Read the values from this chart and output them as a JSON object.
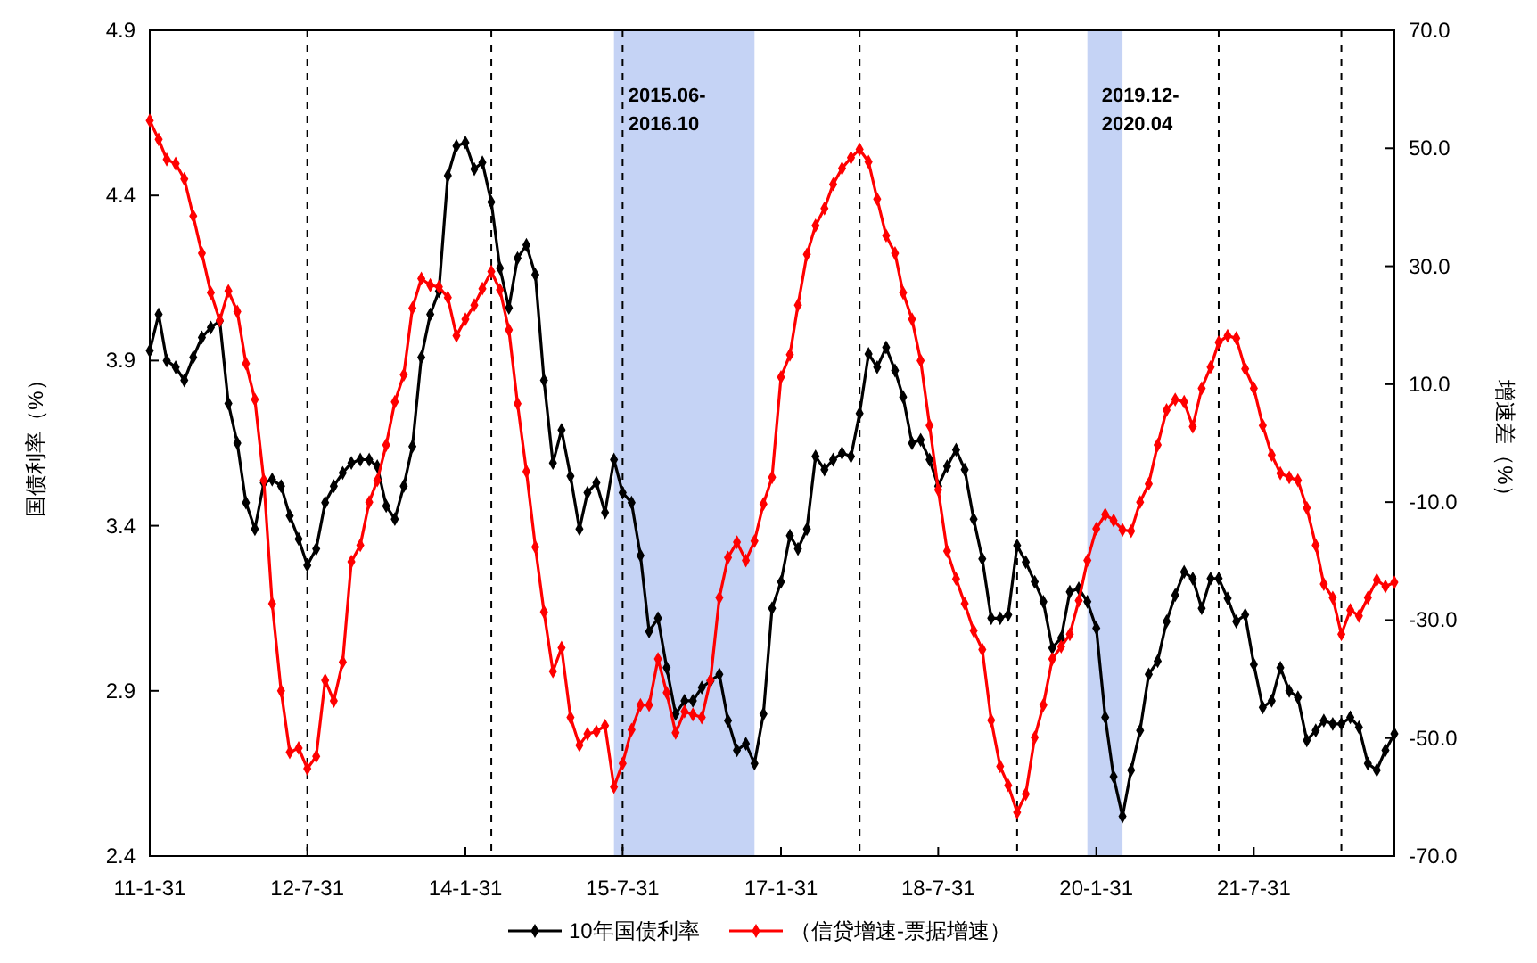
{
  "chart_data": {
    "type": "line",
    "ylabel": "国债利率（%）",
    "y2label": "增速差（%）",
    "x": [
      "2011-01",
      "2011-02",
      "2011-03",
      "2011-04",
      "2011-05",
      "2011-06",
      "2011-07",
      "2011-08",
      "2011-09",
      "2011-10",
      "2011-11",
      "2011-12",
      "2012-01",
      "2012-02",
      "2012-03",
      "2012-04",
      "2012-05",
      "2012-06",
      "2012-07",
      "2012-08",
      "2012-09",
      "2012-10",
      "2012-11",
      "2012-12",
      "2013-01",
      "2013-02",
      "2013-03",
      "2013-04",
      "2013-05",
      "2013-06",
      "2013-07",
      "2013-08",
      "2013-09",
      "2013-10",
      "2013-11",
      "2013-12",
      "2014-01",
      "2014-02",
      "2014-03",
      "2014-04",
      "2014-05",
      "2014-06",
      "2014-07",
      "2014-08",
      "2014-09",
      "2014-10",
      "2014-11",
      "2014-12",
      "2015-01",
      "2015-02",
      "2015-03",
      "2015-04",
      "2015-05",
      "2015-06",
      "2015-07",
      "2015-08",
      "2015-09",
      "2015-10",
      "2015-11",
      "2015-12",
      "2016-01",
      "2016-02",
      "2016-03",
      "2016-04",
      "2016-05",
      "2016-06",
      "2016-07",
      "2016-08",
      "2016-09",
      "2016-10",
      "2016-11",
      "2016-12",
      "2017-01",
      "2017-02",
      "2017-03",
      "2017-04",
      "2017-05",
      "2017-06",
      "2017-07",
      "2017-08",
      "2017-09",
      "2017-10",
      "2017-11",
      "2017-12",
      "2018-01",
      "2018-02",
      "2018-03",
      "2018-04",
      "2018-05",
      "2018-06",
      "2018-07",
      "2018-08",
      "2018-09",
      "2018-10",
      "2018-11",
      "2018-12",
      "2019-01",
      "2019-02",
      "2019-03",
      "2019-04",
      "2019-05",
      "2019-06",
      "2019-07",
      "2019-08",
      "2019-09",
      "2019-10",
      "2019-11",
      "2019-12",
      "2020-01",
      "2020-02",
      "2020-03",
      "2020-04",
      "2020-05",
      "2020-06",
      "2020-07",
      "2020-08",
      "2020-09",
      "2020-10",
      "2020-11",
      "2020-12",
      "2021-01",
      "2021-02",
      "2021-03",
      "2021-04",
      "2021-05",
      "2021-06",
      "2021-07",
      "2021-08",
      "2021-09",
      "2021-10",
      "2021-11",
      "2021-12",
      "2022-01",
      "2022-02",
      "2022-03",
      "2022-04",
      "2022-05",
      "2022-06",
      "2022-07",
      "2022-08",
      "2022-09",
      "2022-10",
      "2022-11"
    ],
    "series": [
      {
        "name": "10年国债利率",
        "color": "#000000",
        "values": [
          3.93,
          4.04,
          3.9,
          3.88,
          3.84,
          3.91,
          3.97,
          4.0,
          4.02,
          3.77,
          3.65,
          3.47,
          3.39,
          3.53,
          3.54,
          3.52,
          3.43,
          3.36,
          3.28,
          3.33,
          3.47,
          3.52,
          3.56,
          3.59,
          3.6,
          3.6,
          3.58,
          3.46,
          3.42,
          3.52,
          3.64,
          3.91,
          4.04,
          4.11,
          4.46,
          4.55,
          4.56,
          4.48,
          4.5,
          4.38,
          4.18,
          4.06,
          4.21,
          4.25,
          4.16,
          3.84,
          3.59,
          3.69,
          3.55,
          3.39,
          3.5,
          3.53,
          3.44,
          3.6,
          3.5,
          3.47,
          3.31,
          3.08,
          3.12,
          2.97,
          2.83,
          2.87,
          2.87,
          2.91,
          2.93,
          2.95,
          2.81,
          2.72,
          2.74,
          2.68,
          2.83,
          3.15,
          3.23,
          3.37,
          3.33,
          3.39,
          3.61,
          3.57,
          3.6,
          3.62,
          3.61,
          3.74,
          3.92,
          3.88,
          3.94,
          3.87,
          3.79,
          3.65,
          3.66,
          3.6,
          3.52,
          3.58,
          3.63,
          3.57,
          3.42,
          3.3,
          3.12,
          3.12,
          3.13,
          3.34,
          3.29,
          3.23,
          3.17,
          3.03,
          3.06,
          3.2,
          3.21,
          3.17,
          3.09,
          2.82,
          2.64,
          2.52,
          2.66,
          2.78,
          2.95,
          2.99,
          3.11,
          3.19,
          3.26,
          3.24,
          3.15,
          3.24,
          3.24,
          3.18,
          3.11,
          3.13,
          2.98,
          2.85,
          2.87,
          2.97,
          2.9,
          2.88,
          2.75,
          2.78,
          2.81,
          2.8,
          2.8,
          2.82,
          2.79,
          2.68,
          2.66,
          2.72,
          2.77
        ]
      },
      {
        "name": "（信贷增速-票据增速）",
        "color": "#ff0000",
        "axis": "y2",
        "values": [
          54.7,
          51.5,
          48.1,
          47.4,
          44.8,
          38.5,
          32.2,
          25.5,
          20.8,
          25.8,
          22.3,
          13.5,
          7.4,
          -6.3,
          -27.2,
          -42.0,
          -52.4,
          -51.7,
          -55.2,
          -53.1,
          -40.2,
          -43.7,
          -37.1,
          -20.1,
          -17.3,
          -10.0,
          -6.3,
          -0.3,
          7.0,
          11.6,
          22.9,
          27.9,
          26.8,
          26.5,
          24.7,
          18.2,
          21.0,
          23.4,
          26.2,
          29.1,
          26.0,
          19.2,
          6.7,
          -4.8,
          -17.6,
          -28.6,
          -38.7,
          -34.7,
          -46.5,
          -51.2,
          -49.3,
          -48.9,
          -47.9,
          -58.3,
          -54.3,
          -48.6,
          -44.4,
          -44.4,
          -36.6,
          -42.3,
          -49.1,
          -45.5,
          -46.0,
          -46.5,
          -40.2,
          -26.2,
          -19.4,
          -16.8,
          -19.9,
          -16.6,
          -10.3,
          -5.8,
          11.2,
          15.0,
          23.4,
          32.0,
          36.9,
          39.8,
          43.9,
          46.6,
          48.4,
          49.8,
          47.7,
          41.4,
          35.2,
          32.2,
          25.5,
          21.0,
          14.0,
          3.0,
          -7.9,
          -18.3,
          -23.0,
          -27.2,
          -31.8,
          -35.0,
          -47.0,
          -54.8,
          -58.0,
          -62.6,
          -59.5,
          -49.9,
          -44.4,
          -36.6,
          -34.5,
          -32.4,
          -26.7,
          -19.9,
          -14.5,
          -12.1,
          -13.1,
          -14.7,
          -14.9,
          -10.0,
          -6.9,
          -0.3,
          5.6,
          7.4,
          7.0,
          2.8,
          9.3,
          12.9,
          17.1,
          18.2,
          17.8,
          12.6,
          9.3,
          3.0,
          -2.0,
          -5.1,
          -5.8,
          -6.3,
          -11.0,
          -17.3,
          -23.9,
          -26.2,
          -32.4,
          -28.3,
          -29.3,
          -26.2,
          -23.2,
          -24.3,
          -23.6
        ]
      }
    ],
    "xlim": [
      "2011-01",
      "2022-11"
    ],
    "xticks": [
      {
        "value": "2011-01",
        "label": "11-1-31"
      },
      {
        "value": "2012-07",
        "label": "12-7-31"
      },
      {
        "value": "2014-01",
        "label": "14-1-31"
      },
      {
        "value": "2015-07",
        "label": "15-7-31"
      },
      {
        "value": "2017-01",
        "label": "17-1-31"
      },
      {
        "value": "2018-07",
        "label": "18-7-31"
      },
      {
        "value": "2020-01",
        "label": "20-1-31"
      },
      {
        "value": "2021-07",
        "label": "21-7-31"
      }
    ],
    "ylim": [
      2.4,
      4.9
    ],
    "yticks": [
      2.4,
      2.9,
      3.4,
      3.9,
      4.4,
      4.9
    ],
    "y2lim": [
      -70,
      70
    ],
    "y2ticks": [
      {
        "value": -70,
        "label": "-70.0"
      },
      {
        "value": -50,
        "label": "-50.0"
      },
      {
        "value": -30,
        "label": "-30.0"
      },
      {
        "value": -10,
        "label": "-10.0"
      },
      {
        "value": 10,
        "label": "10.0"
      },
      {
        "value": 30,
        "label": "30.0"
      },
      {
        "value": 50,
        "label": "50.0"
      },
      {
        "value": 70,
        "label": "70.0"
      }
    ],
    "bands": [
      {
        "axis": "x",
        "from": "2015-06",
        "to": "2016-10",
        "label": "2015.06-\n2016.10",
        "color": "#c5d3f5"
      },
      {
        "axis": "x",
        "from": "2019-12",
        "to": "2020-04",
        "label": "2019.12-\n2020.04",
        "color": "#c5d3f5"
      }
    ],
    "ref_lines": [
      {
        "axis": "x",
        "value": "2012-07",
        "line_style": "dashed",
        "color": "#000000"
      },
      {
        "axis": "x",
        "value": "2014-04",
        "line_style": "dashed",
        "color": "#000000"
      },
      {
        "axis": "x",
        "value": "2015-07",
        "line_style": "dashed",
        "color": "#000000"
      },
      {
        "axis": "x",
        "value": "2017-10",
        "line_style": "dashed",
        "color": "#000000"
      },
      {
        "axis": "x",
        "value": "2019-04",
        "line_style": "dashed",
        "color": "#000000"
      },
      {
        "axis": "x",
        "value": "2021-03",
        "line_style": "dashed",
        "color": "#000000"
      },
      {
        "axis": "x",
        "value": "2022-05",
        "line_style": "dashed",
        "color": "#000000"
      }
    ],
    "marker": "diamond",
    "legend": "bottom"
  }
}
